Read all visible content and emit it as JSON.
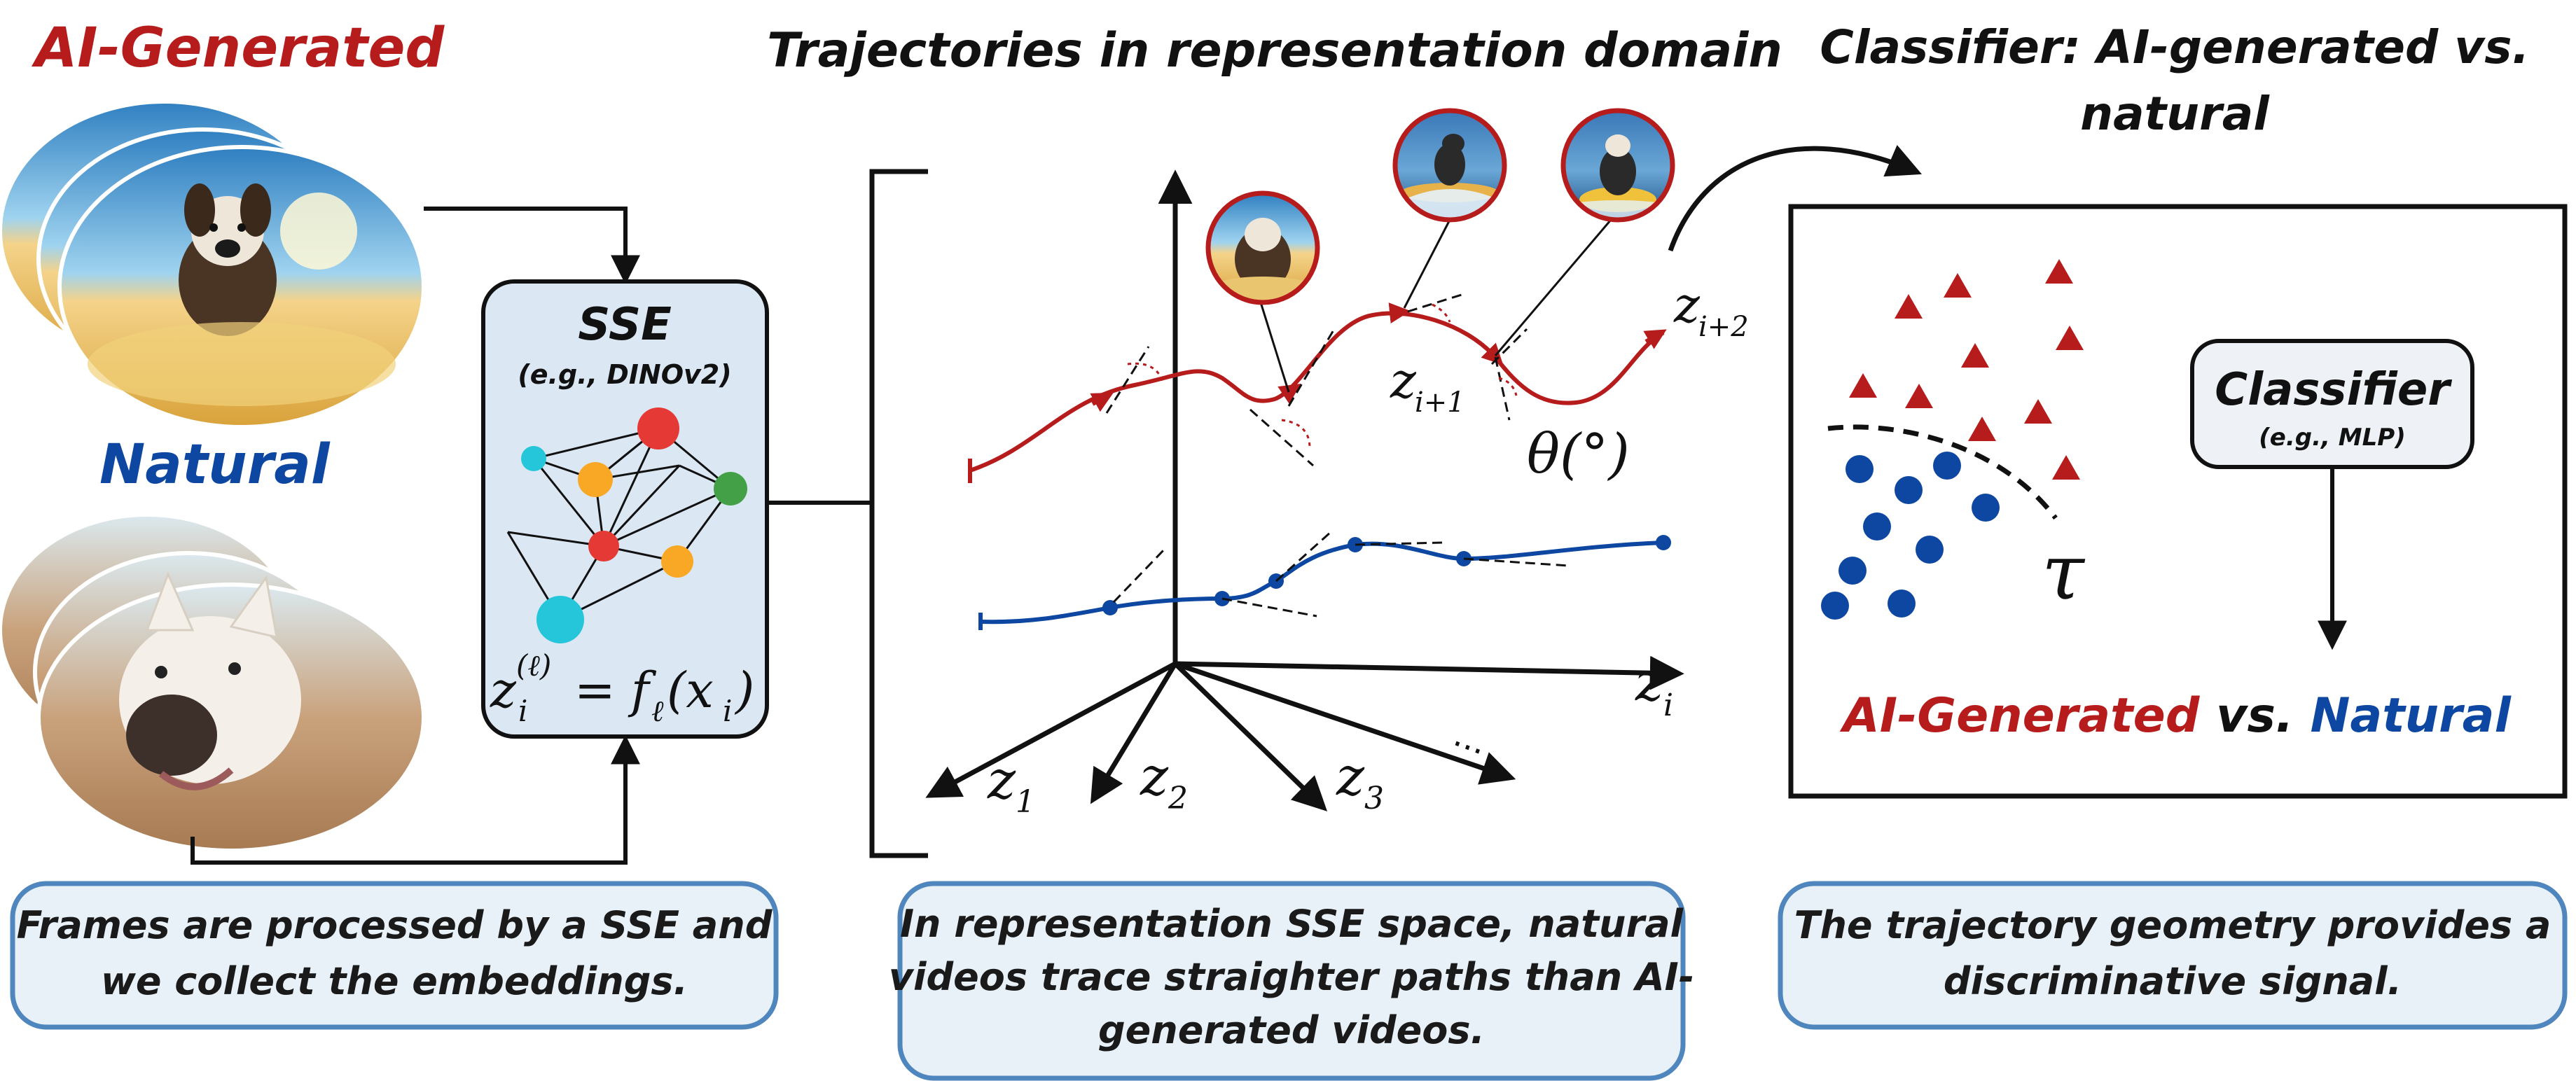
{
  "left_panel": {
    "ai_label": "AI-Generated",
    "natural_label": "Natural",
    "encoder": {
      "title": "SSE",
      "subtitle": "(e.g., DINOv2)",
      "formula_lhs": "z",
      "formula_sub": "i",
      "formula_sup": "(ℓ)",
      "formula_rhs": "= f",
      "formula_rhs_sub": "ℓ",
      "formula_arg": "(x",
      "formula_arg_sub": "i",
      "formula_close": ")"
    },
    "caption_lines": [
      "Frames are processed by a SSE and",
      "we collect the embeddings."
    ]
  },
  "middle_panel": {
    "title": "Trajectories in representation domain",
    "axis_labels": {
      "z_i": "z",
      "z_i_sub": "i",
      "z1": "z",
      "z1_sub": "1",
      "z2": "z",
      "z2_sub": "2",
      "z3": "z",
      "z3_sub": "3",
      "ellipsis": "...",
      "z_i1": "z",
      "z_i1_sub": "i+1",
      "z_i2": "z",
      "z_i2_sub": "i+2",
      "theta": "θ(°)"
    },
    "caption_lines": [
      "In representation SSE space, natural",
      "videos trace straighter paths than AI-",
      "generated videos."
    ]
  },
  "right_panel": {
    "title_lines": [
      "Classifier: AI-generated vs.",
      "natural"
    ],
    "classifier_title": "Classifier",
    "classifier_subtitle": "(e.g., MLP)",
    "threshold_symbol": "τ",
    "result_ai": "AI-Generated",
    "result_vs": " vs. ",
    "result_natural": "Natural",
    "caption_lines": [
      "The trajectory geometry provides a",
      "discriminative signal."
    ]
  },
  "colors": {
    "ai_red": "#b71c1c",
    "natural_blue": "#0d47a1",
    "caption_fill": "#e8f1f8",
    "caption_border": "#4f86bd",
    "encoder_fill": "#dbe7f3",
    "classifier_fill": "#eef2f6"
  },
  "legend_points": {
    "ai_triangles": 10,
    "natural_circles": 9
  }
}
